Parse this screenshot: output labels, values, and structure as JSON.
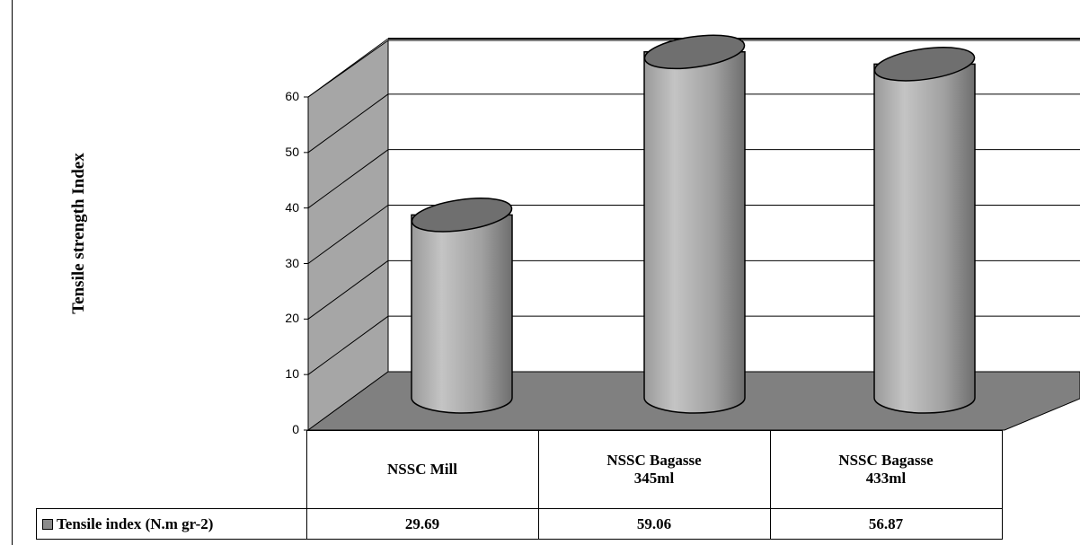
{
  "chart_data": {
    "type": "bar",
    "categories": [
      "NSSC Mill",
      "NSSC Bagasse 345ml",
      "NSSC Bagasse 433ml"
    ],
    "category_lines": [
      [
        "NSSC Mill"
      ],
      [
        "NSSC Bagasse",
        "345ml"
      ],
      [
        "NSSC Bagasse",
        "433ml"
      ]
    ],
    "series": [
      {
        "name": "Tensile index (N.m gr-2)",
        "values": [
          29.69,
          59.06,
          56.87
        ],
        "labels": [
          "29.69",
          "59.06",
          "56.87"
        ]
      }
    ],
    "ylabel": "Tensile  strength Index",
    "ylim": [
      0,
      60
    ],
    "yticks": [
      "0",
      "10",
      "20",
      "30",
      "40",
      "50",
      "60"
    ],
    "grid": true,
    "style": "3d-cylinder",
    "bar_color": "#8c8c8c",
    "wall_color": "#a6a6a6",
    "floor_color": "#808080"
  }
}
